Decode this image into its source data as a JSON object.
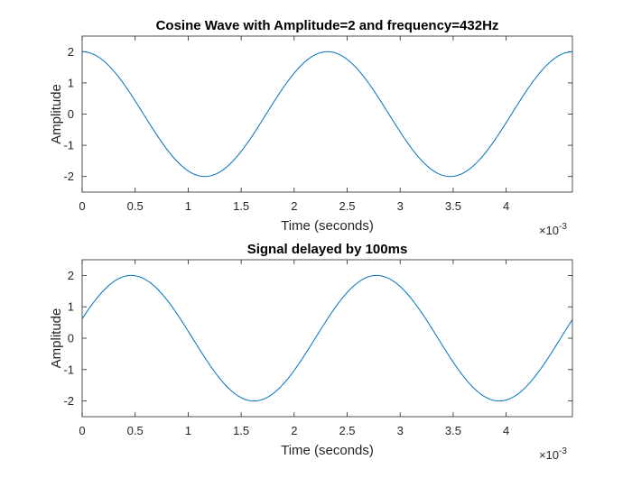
{
  "chart_data": [
    {
      "type": "line",
      "title": "Cosine Wave with Amplitude=2 and frequency=432Hz",
      "xlabel": "Time (seconds)",
      "ylabel": "Amplitude",
      "x_exponent_base": "×10",
      "x_exponent_power": "-3",
      "xlim": [
        0,
        0.004625
      ],
      "ylim": [
        -2.5,
        2.5
      ],
      "x_ticks": [
        0,
        0.0005,
        0.001,
        0.0015,
        0.002,
        0.0025,
        0.003,
        0.0035,
        0.004
      ],
      "x_tick_labels": [
        "0",
        "0.5",
        "1",
        "1.5",
        "2",
        "2.5",
        "3",
        "3.5",
        "4"
      ],
      "y_ticks": [
        -2,
        -1,
        0,
        1,
        2
      ],
      "y_tick_labels": [
        "-2",
        "-1",
        "0",
        "1",
        "2"
      ],
      "grid": false,
      "line_color": "#0072bd",
      "series": [
        {
          "function": "cosine",
          "amplitude": 2,
          "frequency_hz": 432,
          "phase_rad": 0
        }
      ]
    },
    {
      "type": "line",
      "title": "Signal delayed by 100ms",
      "xlabel": "Time (seconds)",
      "ylabel": "Amplitude",
      "x_exponent_base": "×10",
      "x_exponent_power": "-3",
      "xlim": [
        0,
        0.004625
      ],
      "ylim": [
        -2.5,
        2.5
      ],
      "x_ticks": [
        0,
        0.0005,
        0.001,
        0.0015,
        0.002,
        0.0025,
        0.003,
        0.0035,
        0.004
      ],
      "x_tick_labels": [
        "0",
        "0.5",
        "1",
        "1.5",
        "2",
        "2.5",
        "3",
        "3.5",
        "4"
      ],
      "y_ticks": [
        -2,
        -1,
        0,
        1,
        2
      ],
      "y_tick_labels": [
        "-2",
        "-1",
        "0",
        "1",
        "2"
      ],
      "grid": false,
      "line_color": "#0072bd",
      "series": [
        {
          "function": "cosine",
          "amplitude": 2,
          "frequency_hz": 432,
          "phase_rad": -1.2566
        }
      ]
    }
  ]
}
